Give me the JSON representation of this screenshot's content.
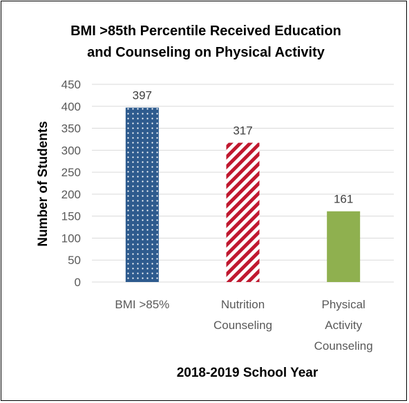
{
  "chart_data": {
    "type": "bar",
    "title": [
      "BMI >85th Percentile Received Education",
      "and Counseling on Physical Activity"
    ],
    "xlabel": "2018-2019 School Year",
    "ylabel": "Number of Students",
    "ylim": [
      0,
      450
    ],
    "yticks": [
      "0",
      "50",
      "100",
      "150",
      "200",
      "250",
      "300",
      "350",
      "400",
      "450"
    ],
    "grid": true,
    "legend": "none",
    "categories": [
      [
        "BMI >85%"
      ],
      [
        "Nutrition",
        "Counseling"
      ],
      [
        "Physical",
        "Activity",
        "Counseling"
      ]
    ],
    "values": [
      397,
      317,
      161
    ],
    "data_labels": [
      "397",
      "317",
      "161"
    ],
    "colors": {
      "bar1": "#2e5b8e",
      "bar1_pattern": "dotted",
      "bar2": "#c0182f",
      "bar2_pattern": "diagonal-stripes",
      "bar3": "#8fb04f",
      "grid": "#d9d9d9"
    }
  }
}
